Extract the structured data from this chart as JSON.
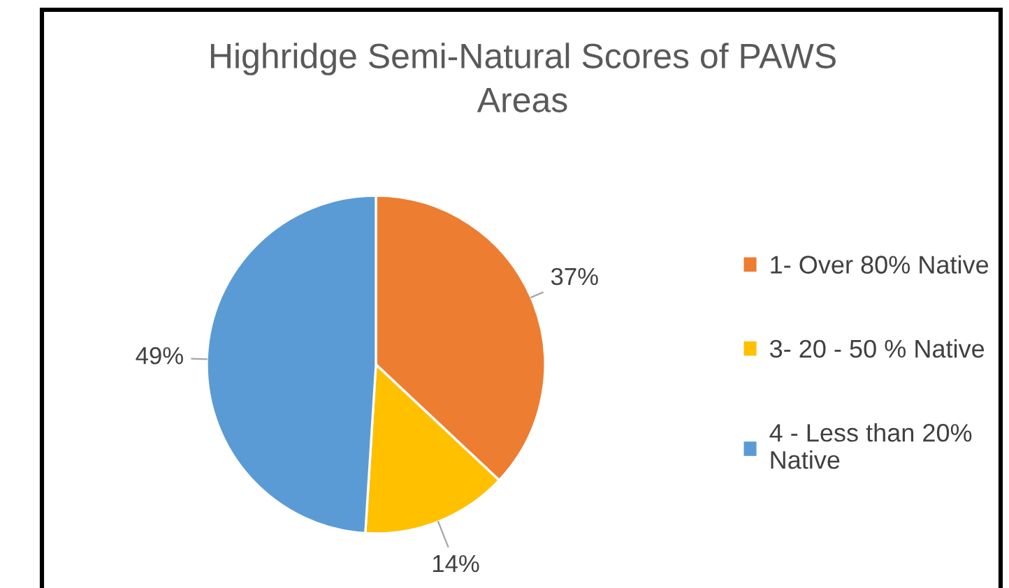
{
  "chart_data": {
    "type": "pie",
    "title": "Highridge Semi-Natural Scores of PAWS Areas",
    "categories": [
      "1- Over 80% Native",
      "3- 20 - 50 % Native",
      "4 - Less than 20% Native"
    ],
    "values": [
      37,
      14,
      49
    ],
    "colors": [
      "#ed7d31",
      "#ffc000",
      "#5b9bd5"
    ],
    "value_labels": [
      "37%",
      "14%",
      "49%"
    ],
    "legend": "right"
  }
}
